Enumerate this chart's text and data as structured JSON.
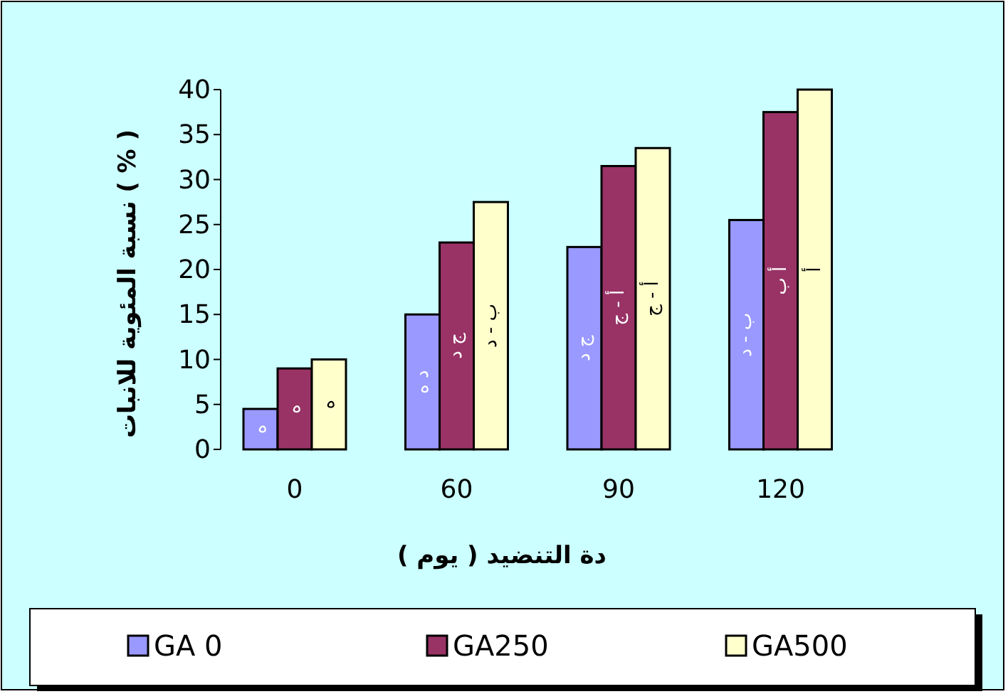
{
  "chart_data": {
    "type": "bar",
    "xlabel": "دة التنضيد ( يوم )",
    "ylabel": "نسبة المئوية للانبات ( % )",
    "categories": [
      "0",
      "60",
      "90",
      "120"
    ],
    "series": [
      {
        "name": "GA 0",
        "color": "#9999ff",
        "values": [
          4.5,
          15,
          22.5,
          25.5
        ],
        "value_labels": [
          "ه",
          "د ه",
          "ج د",
          "ب - د"
        ]
      },
      {
        "name": "GA250",
        "color": "#993366",
        "values": [
          9,
          23,
          31.5,
          37.5
        ],
        "value_labels": [
          "ه",
          "ج د",
          "أ - ج",
          "أ ب"
        ]
      },
      {
        "name": "GA500",
        "color": "#ffffcc",
        "values": [
          10,
          27.5,
          33.5,
          40
        ],
        "value_labels": [
          "ه",
          "ب - د",
          "أ - ج",
          "أ"
        ]
      }
    ],
    "ylim": [
      0,
      40
    ],
    "yticks": [
      0,
      5,
      10,
      15,
      20,
      25,
      30,
      35,
      40
    ],
    "legend": "bottom",
    "grid": false
  }
}
